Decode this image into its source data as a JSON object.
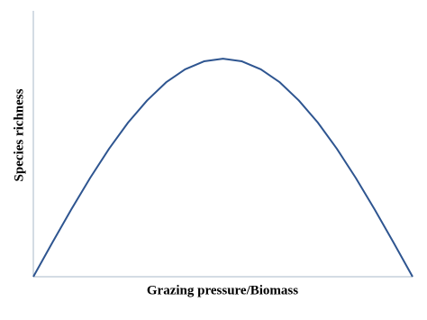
{
  "chart_data": {
    "type": "line",
    "xlabel": "Grazing pressure/Biomass",
    "ylabel": "Species richness",
    "x": [
      0,
      5,
      10,
      15,
      20,
      25,
      30,
      35,
      40,
      45,
      50,
      55,
      60,
      65,
      70,
      75,
      80,
      85,
      90,
      95,
      100
    ],
    "series": [
      {
        "color": "#2e5590",
        "values": [
          0,
          12.8,
          25.3,
          37.2,
          48.2,
          58,
          66.3,
          73.1,
          78,
          81,
          82,
          81,
          78,
          73.1,
          66.3,
          58,
          48.2,
          37.2,
          25.3,
          12.8,
          0
        ]
      }
    ],
    "xlim": [
      0,
      100
    ],
    "ylim": [
      0,
      100
    ]
  }
}
